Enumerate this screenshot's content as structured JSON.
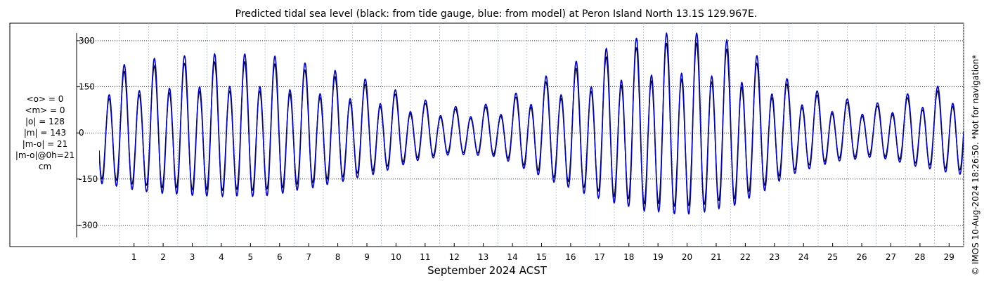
{
  "chart_data": {
    "type": "line",
    "title": "Predicted tidal sea level (black: from tide gauge, blue: from model) at Peron Island North 13.1S 129.967E.",
    "xlabel": "September 2024 ACST",
    "ylabel": "",
    "unit": "cm",
    "x_ticks": [
      "1",
      "2",
      "3",
      "4",
      "5",
      "6",
      "7",
      "8",
      "9",
      "10",
      "11",
      "12",
      "13",
      "14",
      "15",
      "16",
      "17",
      "18",
      "19",
      "20",
      "21",
      "22",
      "23",
      "24",
      "25",
      "26",
      "27",
      "28",
      "29"
    ],
    "xlim_days": [
      0.3,
      30.0
    ],
    "y_ticks": [
      300,
      150,
      0,
      -150,
      -300
    ],
    "y_tick_labels": [
      "300",
      "150",
      "0",
      "-150",
      "-300"
    ],
    "ylim": [
      -340,
      325
    ],
    "grid": true,
    "series": [
      {
        "name": "from tide gauge",
        "color": "#000000"
      },
      {
        "name": "from model",
        "color": "#0000cc"
      }
    ],
    "envelope_amplitude_cm": [
      [
        0.3,
        190
      ],
      [
        2.0,
        225
      ],
      [
        4.0,
        240
      ],
      [
        6.0,
        240
      ],
      [
        8.0,
        200
      ],
      [
        10.0,
        150
      ],
      [
        11.0,
        110
      ],
      [
        12.5,
        80
      ],
      [
        14.0,
        90
      ],
      [
        15.0,
        140
      ],
      [
        16.0,
        190
      ],
      [
        17.5,
        250
      ],
      [
        19.0,
        295
      ],
      [
        20.5,
        310
      ],
      [
        22.0,
        280
      ],
      [
        23.0,
        230
      ],
      [
        24.0,
        160
      ],
      [
        25.5,
        110
      ],
      [
        27.0,
        90
      ],
      [
        28.5,
        130
      ],
      [
        30.0,
        160
      ]
    ],
    "gauge_to_model_ratio": 0.9
  },
  "stats": {
    "lines": [
      "<o> = 0",
      "<m> = 0",
      "|o| = 128",
      "|m| = 143",
      "|m-o| = 21",
      "|m-o|@0h=21",
      "cm"
    ]
  },
  "credit": "© IMOS 10-Aug-2024 18:26:50. *Not for navigation*"
}
